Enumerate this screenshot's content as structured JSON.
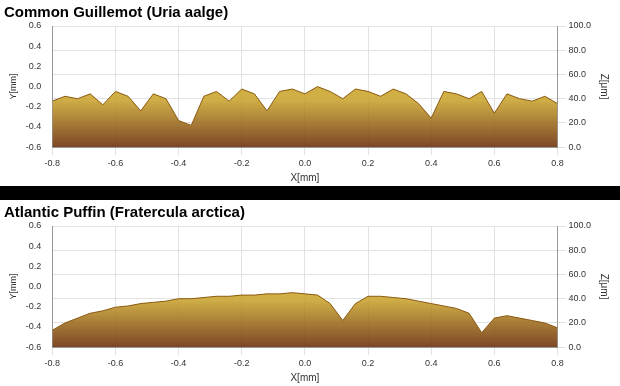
{
  "chart_data": [
    {
      "type": "line",
      "title": "Common Guillemot (Uria aalge)",
      "x_label": "X[mm]",
      "y_label": "Z[μm]",
      "depth_label": "Y[mm]",
      "depth_lim": [
        -0.6,
        0.6
      ],
      "depth_ticks": [
        -0.6,
        -0.4,
        -0.2,
        {
          "value": 0,
          "label": "0.0"
        },
        0.2,
        0.4,
        0.6
      ],
      "x": [
        -0.8,
        -0.76,
        -0.72,
        -0.68,
        -0.64,
        -0.6,
        -0.56,
        -0.52,
        -0.48,
        -0.44,
        -0.4,
        -0.36,
        -0.32,
        -0.28,
        -0.24,
        -0.2,
        -0.16,
        -0.12,
        -0.08,
        -0.04,
        0,
        0.04,
        0.08,
        0.12,
        0.16,
        0.2,
        0.24,
        0.28,
        0.32,
        0.36,
        0.4,
        0.44,
        0.48,
        0.52,
        0.56,
        0.6,
        0.64,
        0.68,
        0.72,
        0.76,
        0.8
      ],
      "values": [
        38,
        42,
        40,
        44,
        35,
        46,
        42,
        30,
        44,
        40,
        22,
        18,
        42,
        46,
        38,
        48,
        44,
        30,
        46,
        48,
        44,
        50,
        46,
        40,
        48,
        46,
        42,
        48,
        44,
        36,
        24,
        46,
        44,
        40,
        46,
        28,
        44,
        40,
        38,
        42,
        36
      ],
      "color": "#c9a227",
      "xlim": [
        -0.8,
        0.8
      ],
      "xticks": [
        -0.8,
        -0.6,
        -0.4,
        -0.2,
        {
          "value": 0,
          "label": "0.0"
        },
        0.2,
        0.4,
        0.6,
        0.8
      ],
      "ylim": [
        0,
        100
      ],
      "yticks": [
        {
          "value": 0,
          "label": "0.0"
        },
        {
          "value": 20,
          "label": "20.0"
        },
        {
          "value": 40,
          "label": "40.0"
        },
        {
          "value": 60,
          "label": "60.0"
        },
        {
          "value": 80,
          "label": "80.0"
        },
        {
          "value": 100,
          "label": "100.0"
        }
      ],
      "grid": true
    },
    {
      "type": "line",
      "title": "Atlantic Puffin (Fratercula arctica)",
      "x_label": "X[mm]",
      "y_label": "Z[μm]",
      "depth_label": "Y[mm]",
      "depth_lim": [
        -0.6,
        0.6
      ],
      "depth_ticks": [
        -0.6,
        -0.4,
        -0.2,
        {
          "value": 0,
          "label": "0.0"
        },
        0.2,
        0.4,
        0.6
      ],
      "x": [
        -0.8,
        -0.76,
        -0.72,
        -0.68,
        -0.64,
        -0.6,
        -0.56,
        -0.52,
        -0.48,
        -0.44,
        -0.4,
        -0.36,
        -0.32,
        -0.28,
        -0.24,
        -0.2,
        -0.16,
        -0.12,
        -0.08,
        -0.04,
        0,
        0.04,
        0.08,
        0.12,
        0.16,
        0.2,
        0.24,
        0.28,
        0.32,
        0.36,
        0.4,
        0.44,
        0.48,
        0.52,
        0.56,
        0.6,
        0.64,
        0.68,
        0.72,
        0.76,
        0.8
      ],
      "values": [
        14,
        20,
        24,
        28,
        30,
        33,
        34,
        36,
        37,
        38,
        40,
        40,
        41,
        42,
        42,
        43,
        43,
        44,
        44,
        45,
        44,
        43,
        36,
        22,
        36,
        42,
        42,
        41,
        40,
        38,
        36,
        34,
        32,
        28,
        12,
        24,
        26,
        24,
        22,
        20,
        16
      ],
      "color": "#c9a227",
      "xlim": [
        -0.8,
        0.8
      ],
      "xticks": [
        -0.8,
        -0.6,
        -0.4,
        -0.2,
        {
          "value": 0,
          "label": "0.0"
        },
        0.2,
        0.4,
        0.6,
        0.8
      ],
      "ylim": [
        0,
        100
      ],
      "yticks": [
        {
          "value": 0,
          "label": "0.0"
        },
        {
          "value": 20,
          "label": "20.0"
        },
        {
          "value": 40,
          "label": "40.0"
        },
        {
          "value": 60,
          "label": "60.0"
        },
        {
          "value": 80,
          "label": "80.0"
        },
        {
          "value": 100,
          "label": "100.0"
        }
      ],
      "grid": true
    }
  ]
}
